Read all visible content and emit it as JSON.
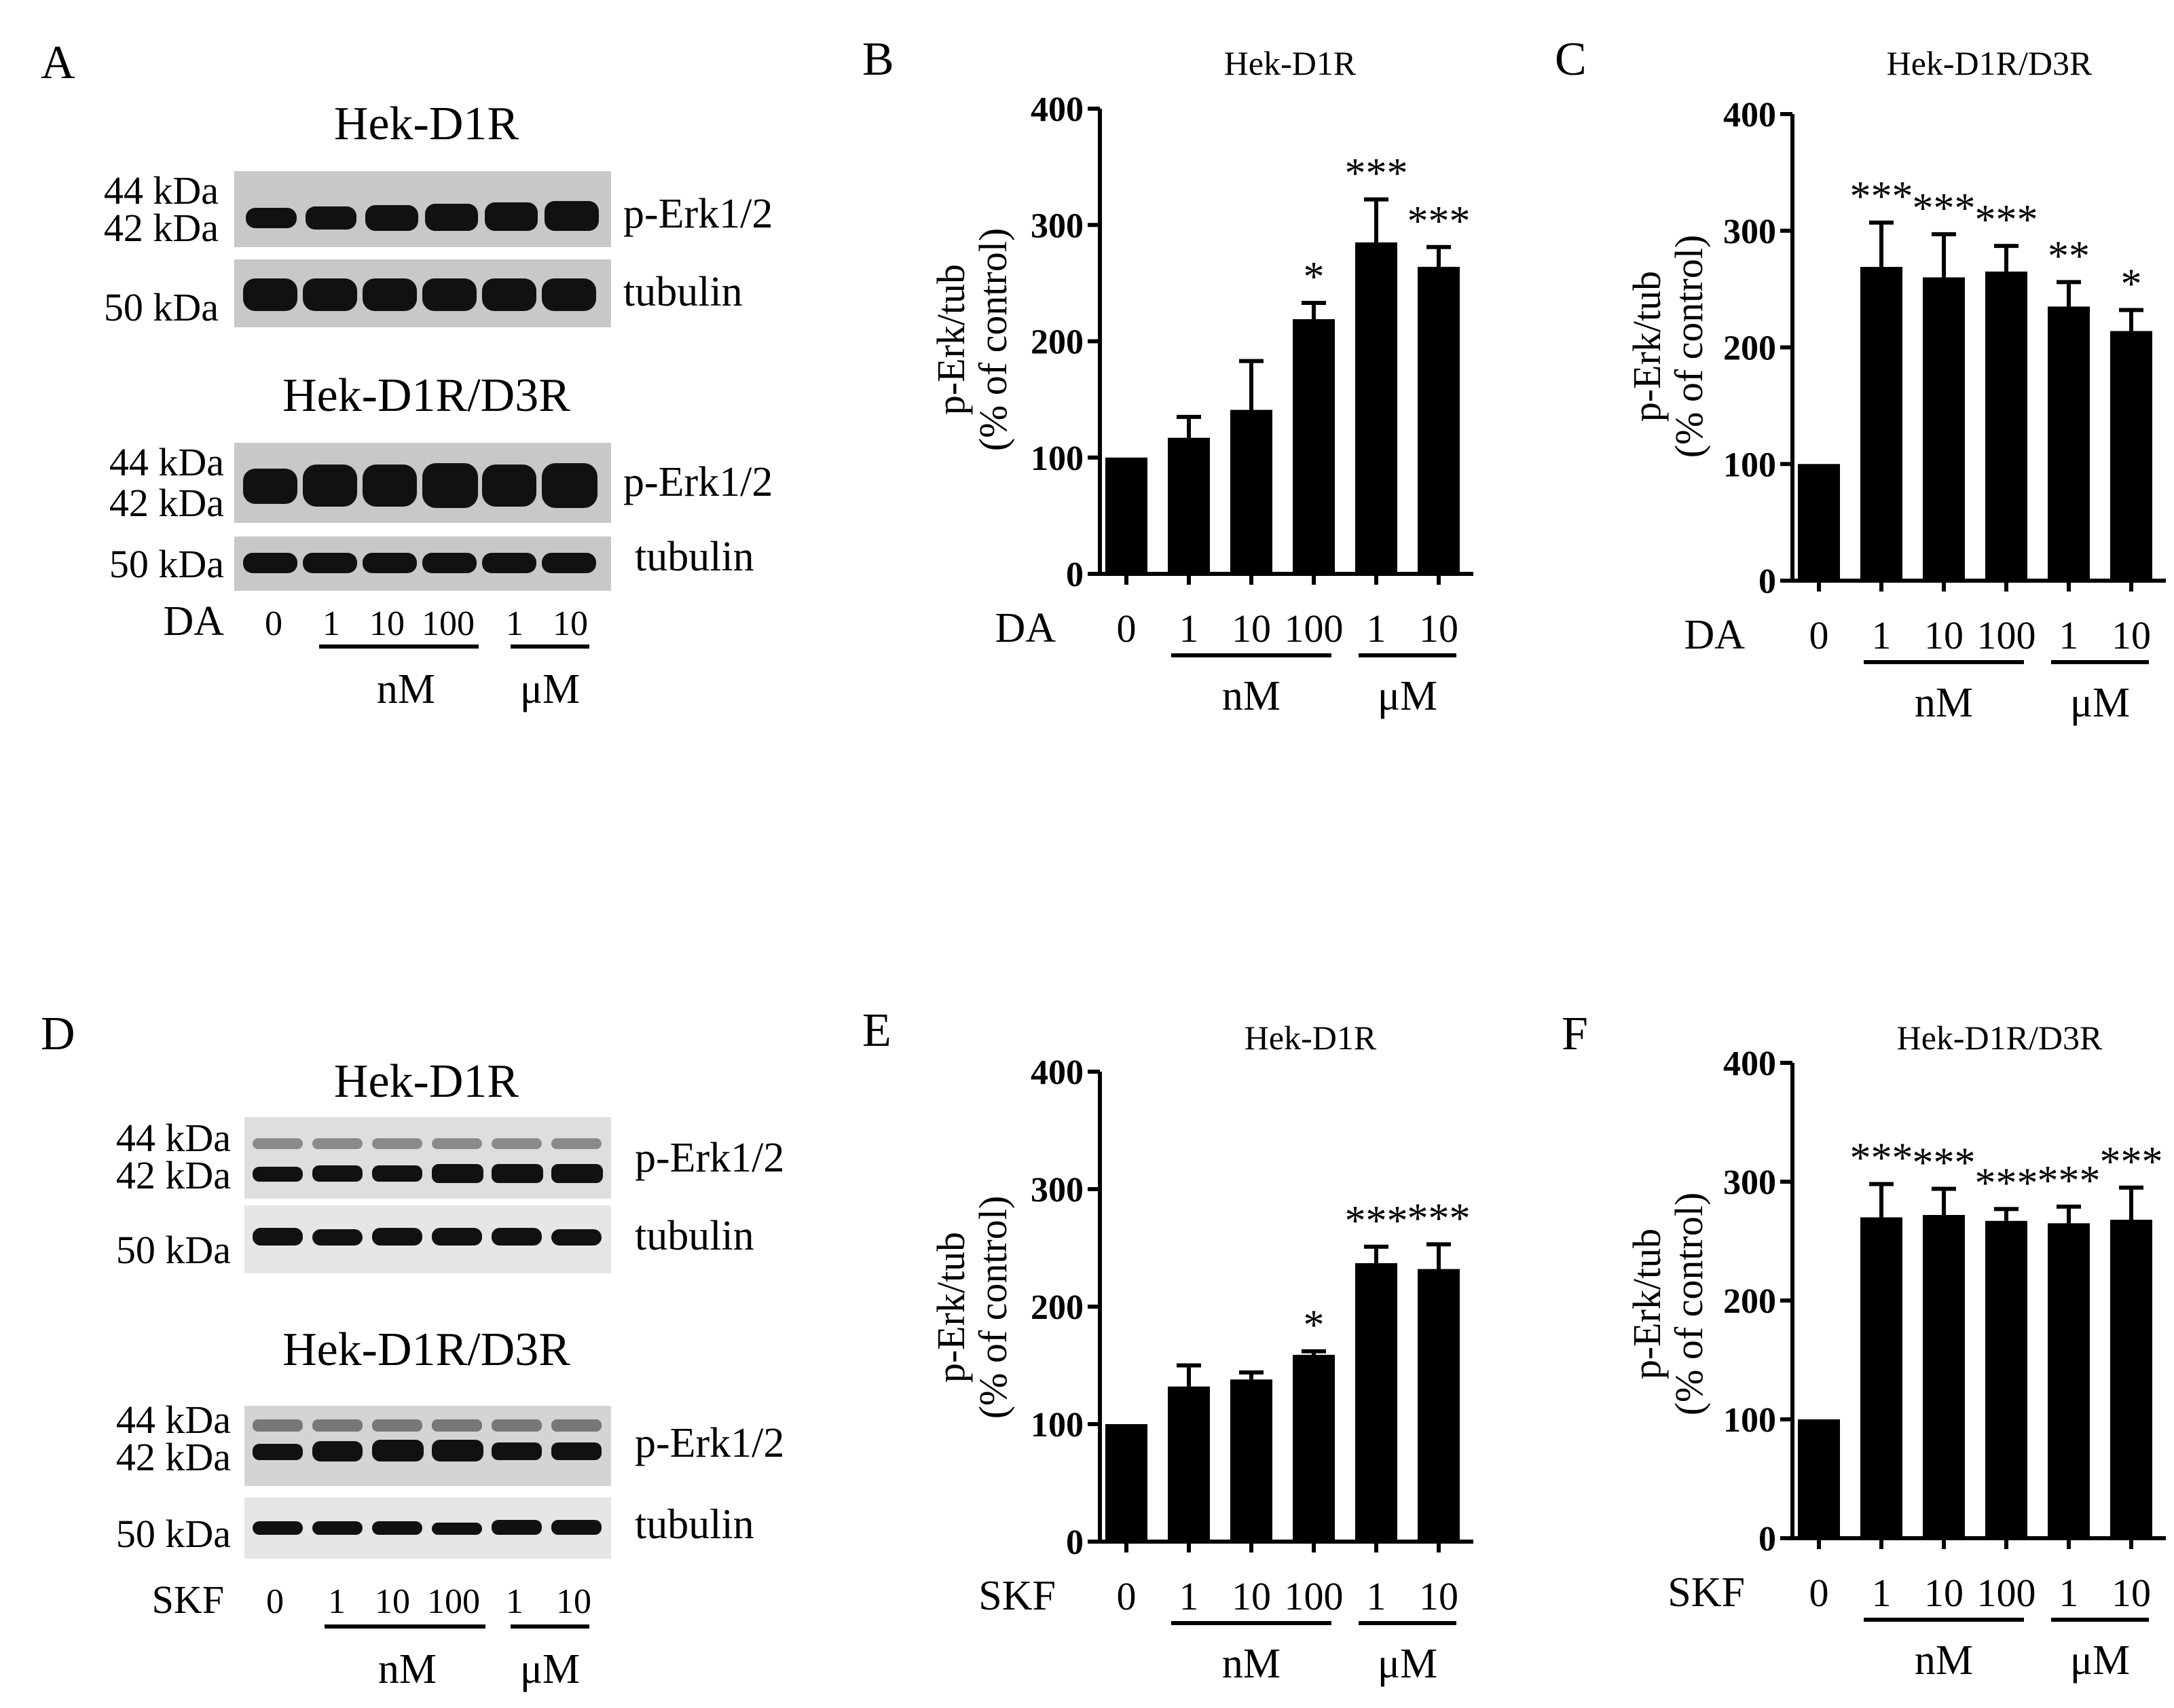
{
  "blots": [
    {
      "letter": "A",
      "groups": [
        {
          "title": "Hek-D1R"
        },
        {
          "title": "Hek-D1R/D3R"
        }
      ],
      "mw_44": "44 kDa",
      "mw_42": "42 kDa",
      "mw_50": "50 kDa",
      "perk_label": "p-Erk1/2",
      "tubulin_label": "tubulin",
      "treatment": "DA",
      "doses": [
        "0",
        "1",
        "10",
        "100",
        "1",
        "10"
      ],
      "unit_nm": "nM",
      "unit_um": "μM"
    },
    {
      "letter": "D",
      "groups": [
        {
          "title": "Hek-D1R"
        },
        {
          "title": "Hek-D1R/D3R"
        }
      ],
      "mw_44": "44 kDa",
      "mw_42": "42 kDa",
      "mw_50": "50 kDa",
      "perk_label": "p-Erk1/2",
      "tubulin_label": "tubulin",
      "treatment": "SKF",
      "doses": [
        "0",
        "1",
        "10",
        "100",
        "1",
        "10"
      ],
      "unit_nm": "nM",
      "unit_um": "μM"
    }
  ],
  "chart_data": [
    {
      "letter": "B",
      "type": "bar",
      "title": "Hek-D1R",
      "ylabel": [
        "p-Erk/tub",
        "(% of control)"
      ],
      "ylim": [
        0,
        400
      ],
      "yticks": [
        0,
        100,
        200,
        300,
        400
      ],
      "treatment": "DA",
      "categories": [
        "0",
        "1",
        "10",
        "100",
        "1",
        "10"
      ],
      "units": [
        {
          "label": "nM",
          "from": 1,
          "to": 3
        },
        {
          "label": "μM",
          "from": 4,
          "to": 5
        }
      ],
      "values": [
        100,
        117,
        141,
        219,
        285,
        264
      ],
      "errors": [
        0,
        18,
        42,
        14,
        37,
        17
      ],
      "significance": [
        "",
        "",
        "",
        "*",
        "***",
        "***"
      ]
    },
    {
      "letter": "C",
      "type": "bar",
      "title": "Hek-D1R/D3R",
      "ylabel": [
        "p-Erk/tub",
        "(% of control)"
      ],
      "ylim": [
        0,
        400
      ],
      "yticks": [
        0,
        100,
        200,
        300,
        400
      ],
      "treatment": "DA",
      "categories": [
        "0",
        "1",
        "10",
        "100",
        "1",
        "10"
      ],
      "units": [
        {
          "label": "nM",
          "from": 1,
          "to": 3
        },
        {
          "label": "μM",
          "from": 4,
          "to": 5
        }
      ],
      "values": [
        100,
        269,
        260,
        265,
        235,
        214
      ],
      "errors": [
        0,
        38,
        37,
        22,
        21,
        18
      ],
      "significance": [
        "",
        "***",
        "***",
        "***",
        "**",
        "*"
      ]
    },
    {
      "letter": "E",
      "type": "bar",
      "title": "Hek-D1R",
      "ylabel": [
        "p-Erk/tub",
        "(% of control)"
      ],
      "ylim": [
        0,
        400
      ],
      "yticks": [
        0,
        100,
        200,
        300,
        400
      ],
      "treatment": "SKF",
      "categories": [
        "0",
        "1",
        "10",
        "100",
        "1",
        "10"
      ],
      "units": [
        {
          "label": "nM",
          "from": 1,
          "to": 3
        },
        {
          "label": "μM",
          "from": 4,
          "to": 5
        }
      ],
      "values": [
        100,
        132,
        138,
        159,
        237,
        232
      ],
      "errors": [
        0,
        18,
        6,
        3,
        14,
        21
      ],
      "significance": [
        "",
        "",
        "",
        "*",
        "***",
        "***"
      ]
    },
    {
      "letter": "F",
      "type": "bar",
      "title": "Hek-D1R/D3R",
      "ylabel": [
        "p-Erk/tub",
        "(% of control)"
      ],
      "ylim": [
        0,
        400
      ],
      "yticks": [
        0,
        100,
        200,
        300,
        400
      ],
      "treatment": "SKF",
      "categories": [
        "0",
        "1",
        "10",
        "100",
        "1",
        "10"
      ],
      "units": [
        {
          "label": "nM",
          "from": 1,
          "to": 3
        },
        {
          "label": "μM",
          "from": 4,
          "to": 5
        }
      ],
      "values": [
        100,
        270,
        272,
        267,
        265,
        268
      ],
      "errors": [
        0,
        28,
        22,
        10,
        14,
        27
      ],
      "significance": [
        "",
        "***",
        "***",
        "***",
        "***",
        "***"
      ]
    }
  ]
}
